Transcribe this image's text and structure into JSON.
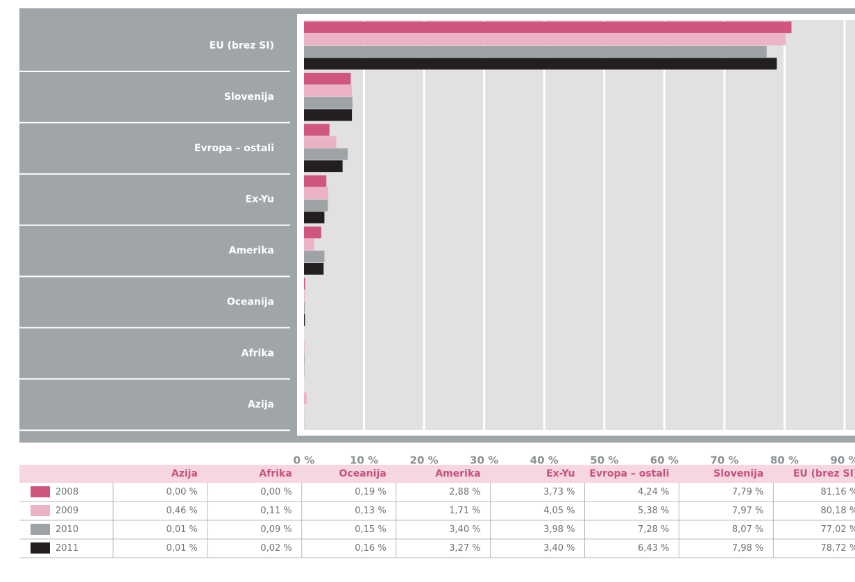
{
  "chart_data": {
    "type": "bar",
    "orientation": "horizontal",
    "categories": [
      "Azija",
      "Afrika",
      "Oceanija",
      "Amerika",
      "Ex-Yu",
      "Evropa – ostali",
      "Slovenija",
      "EU (brez SI)"
    ],
    "series": [
      {
        "name": "2008",
        "color": "#d0557f",
        "values": [
          0.0,
          0.0,
          0.19,
          2.88,
          3.73,
          4.24,
          7.79,
          81.16
        ],
        "value_labels": [
          "0,00 %",
          "0,00 %",
          "0,19 %",
          "2,88 %",
          "3,73 %",
          "4,24 %",
          "7,79 %",
          "81,16 %"
        ]
      },
      {
        "name": "2009",
        "color": "#ecb3c5",
        "values": [
          0.46,
          0.11,
          0.13,
          1.71,
          4.05,
          5.38,
          7.97,
          80.18
        ],
        "value_labels": [
          "0,46 %",
          "0,11 %",
          "0,13 %",
          "1,71 %",
          "4,05 %",
          "5,38 %",
          "7,97 %",
          "80,18 %"
        ]
      },
      {
        "name": "2010",
        "color": "#9ea3a6",
        "values": [
          0.01,
          0.09,
          0.15,
          3.4,
          3.98,
          7.28,
          8.07,
          77.02
        ],
        "value_labels": [
          "0,01 %",
          "0,09 %",
          "0,15 %",
          "3,40 %",
          "3,98 %",
          "7,28 %",
          "8,07 %",
          "77,02 %"
        ]
      },
      {
        "name": "2011",
        "color": "#231f20",
        "values": [
          0.01,
          0.02,
          0.16,
          3.27,
          3.4,
          6.43,
          7.98,
          78.72
        ],
        "value_labels": [
          "0,01 %",
          "0,02 %",
          "0,16 %",
          "3,27 %",
          "3,40 %",
          "6,43 %",
          "7,98 %",
          "78,72 %"
        ]
      }
    ],
    "xlim": [
      0,
      90
    ],
    "xticks": [
      {
        "value": 0,
        "label": "0 %"
      },
      {
        "value": 10,
        "label": "10 %"
      },
      {
        "value": 20,
        "label": "20 %"
      },
      {
        "value": 30,
        "label": "30 %"
      },
      {
        "value": 40,
        "label": "40 %"
      },
      {
        "value": 50,
        "label": "50 %"
      },
      {
        "value": 60,
        "label": "60 %"
      },
      {
        "value": 70,
        "label": "70 %"
      },
      {
        "value": 80,
        "label": "80 %"
      },
      {
        "value": 90,
        "label": "90 %"
      }
    ],
    "grid": true
  }
}
